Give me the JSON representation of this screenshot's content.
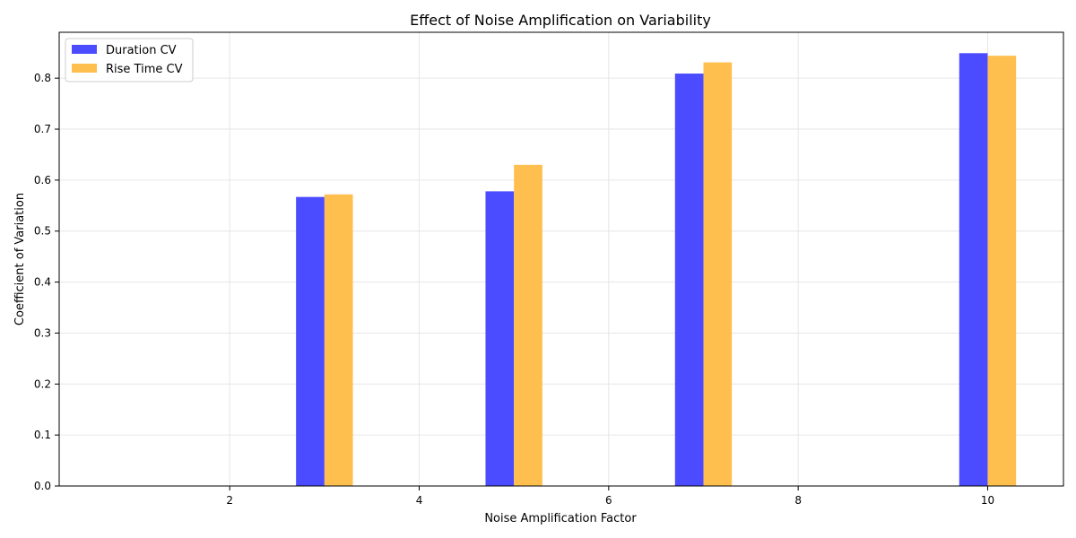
{
  "chart_data": {
    "type": "bar",
    "title": "Effect of Noise Amplification on Variability",
    "xlabel": "Noise Amplification Factor",
    "ylabel": "Coefficient of Variation",
    "x": [
      3,
      5,
      7,
      10
    ],
    "series": [
      {
        "name": "Duration CV",
        "color": "#4B4BFF",
        "values": [
          0.567,
          0.578,
          0.809,
          0.849
        ]
      },
      {
        "name": "Rise Time CV",
        "color": "#FFBF4F",
        "values": [
          0.572,
          0.63,
          0.831,
          0.844
        ]
      }
    ],
    "bar_width": 0.3,
    "xlim": [
      0.2,
      10.8
    ],
    "ylim": [
      0,
      0.89
    ],
    "xticks": [
      2,
      4,
      6,
      8,
      10
    ],
    "yticks": [
      0.0,
      0.1,
      0.2,
      0.3,
      0.4,
      0.5,
      0.6,
      0.7,
      0.8
    ],
    "grid": true,
    "legend_position": "top-left"
  }
}
